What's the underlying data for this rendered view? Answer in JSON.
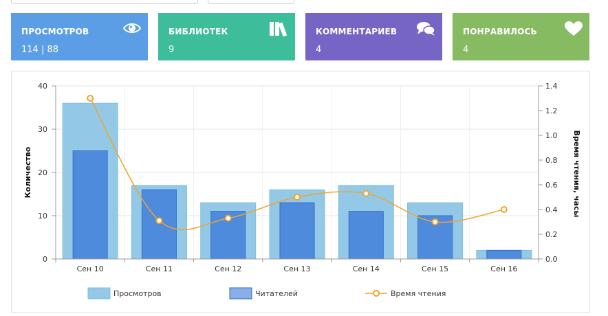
{
  "stats": [
    {
      "label": "ПРОСМОТРОВ",
      "value": "114 | 88",
      "color": "#5b9ee6",
      "icon": "eye-icon"
    },
    {
      "label": "БИБЛИОТЕК",
      "value": "9",
      "color": "#3dbd9a",
      "icon": "books-icon"
    },
    {
      "label": "КОММЕНТАРИЕВ",
      "value": "4",
      "color": "#7665c4",
      "icon": "comments-icon"
    },
    {
      "label": "ПОНРАВИЛОСЬ",
      "value": "4",
      "color": "#86bb62",
      "icon": "heart-icon"
    }
  ],
  "chart_data": {
    "type": "bar",
    "categories": [
      "Сен 10",
      "Сен 11",
      "Сен 12",
      "Сен 13",
      "Сен 14",
      "Сен 15",
      "Сен 16"
    ],
    "series": [
      {
        "name": "Просмотров",
        "type": "bar",
        "axis": "left",
        "color": "#93c9e6",
        "values": [
          36,
          17,
          13,
          16,
          17,
          13,
          2
        ]
      },
      {
        "name": "Читателей",
        "type": "bar",
        "axis": "left",
        "color": "#4f8bdd",
        "values": [
          25,
          16,
          11,
          13,
          11,
          10,
          2
        ]
      },
      {
        "name": "Время чтения",
        "type": "line",
        "axis": "right",
        "color": "#f3a328",
        "values": [
          1.3,
          0.31,
          0.33,
          0.5,
          0.53,
          0.3,
          0.4
        ]
      }
    ],
    "ylabel": "Количество",
    "ylabel_right": "Время чтения, часы",
    "ylim": [
      0,
      40
    ],
    "yticks": [
      "0",
      "10",
      "20",
      "30",
      "40"
    ],
    "ylim_right": [
      0,
      1.4
    ],
    "yticks_right": [
      "0.0",
      "0.2",
      "0.4",
      "0.6",
      "0.8",
      "1.0",
      "1.2",
      "1.4"
    ],
    "grid": true,
    "legend": "bottom"
  }
}
